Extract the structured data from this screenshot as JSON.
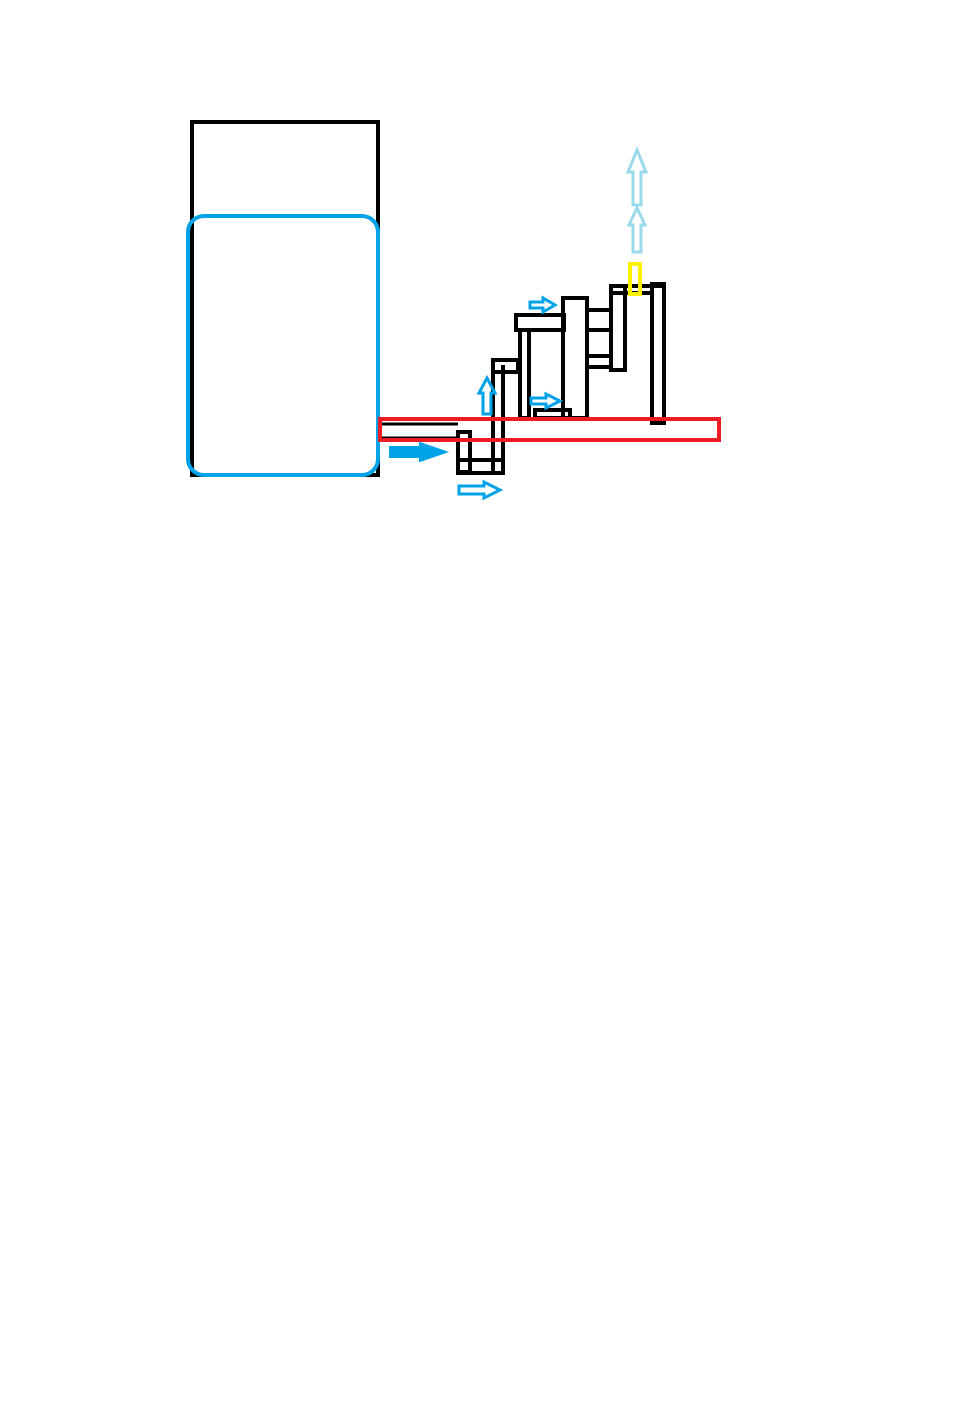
{
  "diagram": {
    "colors": {
      "background": "#ffffff",
      "outline": "#000000",
      "water_blue": "#00a2e8",
      "plate_red": "#ed1c24",
      "marker_yellow": "#fff200",
      "steam_light_blue": "#99d9ea"
    },
    "components": [
      {
        "name": "tank",
        "color": "outline"
      },
      {
        "name": "tank-water-level",
        "color": "water_blue"
      },
      {
        "name": "outlet-pipe",
        "color": "outline"
      },
      {
        "name": "heating-plate",
        "color": "plate_red"
      },
      {
        "name": "u-bend-pipe",
        "color": "outline"
      },
      {
        "name": "riser-pipe",
        "color": "outline"
      },
      {
        "name": "middle-column",
        "color": "outline"
      },
      {
        "name": "tall-column",
        "color": "outline"
      },
      {
        "name": "right-column",
        "color": "outline"
      },
      {
        "name": "vent-marker",
        "color": "marker_yellow"
      }
    ],
    "arrows": [
      {
        "name": "flow-arrow-outlet",
        "direction": "right",
        "color": "water_blue"
      },
      {
        "name": "flow-arrow-bottom",
        "direction": "right",
        "color": "water_blue"
      },
      {
        "name": "flow-arrow-riser",
        "direction": "up",
        "color": "water_blue"
      },
      {
        "name": "flow-arrow-column-top",
        "direction": "right",
        "color": "water_blue"
      },
      {
        "name": "flow-arrow-column-mid",
        "direction": "right",
        "color": "water_blue"
      },
      {
        "name": "steam-arrow-lower",
        "direction": "up",
        "color": "steam_light_blue"
      },
      {
        "name": "steam-arrow-upper",
        "direction": "up",
        "color": "steam_light_blue"
      }
    ]
  }
}
